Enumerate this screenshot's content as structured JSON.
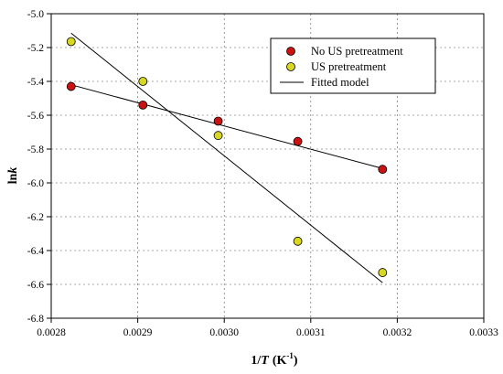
{
  "chart_data": {
    "type": "scatter",
    "xlabel": {
      "pre": "1/",
      "var": "T",
      "units": "(K",
      "sup": "-1",
      "close": ")"
    },
    "ylabel": {
      "pre": "ln",
      "var": "k"
    },
    "xlim": [
      0.0028,
      0.0033
    ],
    "ylim": [
      -6.8,
      -5.0
    ],
    "xticks": [
      0.0028,
      0.0029,
      0.003,
      0.0031,
      0.0032,
      0.0033
    ],
    "yticks": [
      -6.8,
      -6.6,
      -6.4,
      -6.2,
      -6.0,
      -5.8,
      -5.6,
      -5.4,
      -5.2,
      -5.0
    ],
    "xtick_labels": [
      "0.0028",
      "0.0029",
      "0.0030",
      "0.0031",
      "0.0032",
      "0.0033"
    ],
    "ytick_labels": [
      "-6.8",
      "-6.6",
      "-6.4",
      "-6.2",
      "-6.0",
      "-5.8",
      "-5.6",
      "-5.4",
      "-5.2",
      "-5.0"
    ],
    "grid": true,
    "legend_position": "top-right",
    "series": [
      {
        "name": "No US pretreatment",
        "marker": "circle",
        "color": "#cc1111",
        "points": [
          {
            "x": 0.002823,
            "y": -5.43
          },
          {
            "x": 0.002906,
            "y": -5.54
          },
          {
            "x": 0.002993,
            "y": -5.635
          },
          {
            "x": 0.003085,
            "y": -5.755
          },
          {
            "x": 0.003183,
            "y": -5.92
          }
        ]
      },
      {
        "name": "US pretreatment",
        "marker": "circle",
        "color": "#d8d820",
        "points": [
          {
            "x": 0.002823,
            "y": -5.165
          },
          {
            "x": 0.002906,
            "y": -5.4
          },
          {
            "x": 0.002993,
            "y": -5.72
          },
          {
            "x": 0.003085,
            "y": -6.345
          },
          {
            "x": 0.003183,
            "y": -6.53
          }
        ]
      }
    ],
    "fitted": {
      "name": "Fitted model",
      "lines": [
        {
          "x": [
            0.002823,
            0.003183
          ],
          "y": [
            -5.42,
            -5.915
          ]
        },
        {
          "x": [
            0.002823,
            0.003183
          ],
          "y": [
            -5.115,
            -6.59
          ]
        }
      ]
    }
  }
}
